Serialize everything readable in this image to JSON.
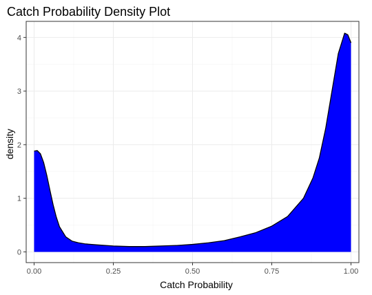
{
  "chart_data": {
    "type": "area",
    "title": "Catch Probability Density Plot",
    "xlabel": "Catch Probability",
    "ylabel": "density",
    "xlim": [
      -0.025,
      1.025
    ],
    "ylim": [
      -0.2,
      4.3
    ],
    "x_ticks": [
      0.0,
      0.25,
      0.5,
      0.75,
      1.0
    ],
    "x_tick_labels": [
      "0.00",
      "0.25",
      "0.50",
      "0.75",
      "1.00"
    ],
    "y_ticks": [
      0,
      1,
      2,
      3,
      4
    ],
    "y_tick_labels": [
      "0",
      "1",
      "2",
      "3",
      "4"
    ],
    "grid": true,
    "fill_color": "#0000ff",
    "line_color": "#000000",
    "x": [
      0.0,
      0.01,
      0.02,
      0.03,
      0.04,
      0.05,
      0.06,
      0.07,
      0.08,
      0.1,
      0.12,
      0.14,
      0.16,
      0.2,
      0.25,
      0.3,
      0.35,
      0.4,
      0.45,
      0.5,
      0.55,
      0.6,
      0.65,
      0.7,
      0.75,
      0.8,
      0.85,
      0.88,
      0.9,
      0.92,
      0.94,
      0.96,
      0.98,
      0.99,
      1.0
    ],
    "y": [
      1.88,
      1.89,
      1.83,
      1.67,
      1.43,
      1.15,
      0.88,
      0.65,
      0.47,
      0.28,
      0.2,
      0.17,
      0.15,
      0.13,
      0.11,
      0.1,
      0.1,
      0.11,
      0.12,
      0.14,
      0.17,
      0.21,
      0.28,
      0.36,
      0.48,
      0.66,
      1.0,
      1.38,
      1.75,
      2.3,
      3.0,
      3.7,
      4.08,
      4.05,
      3.9
    ]
  }
}
